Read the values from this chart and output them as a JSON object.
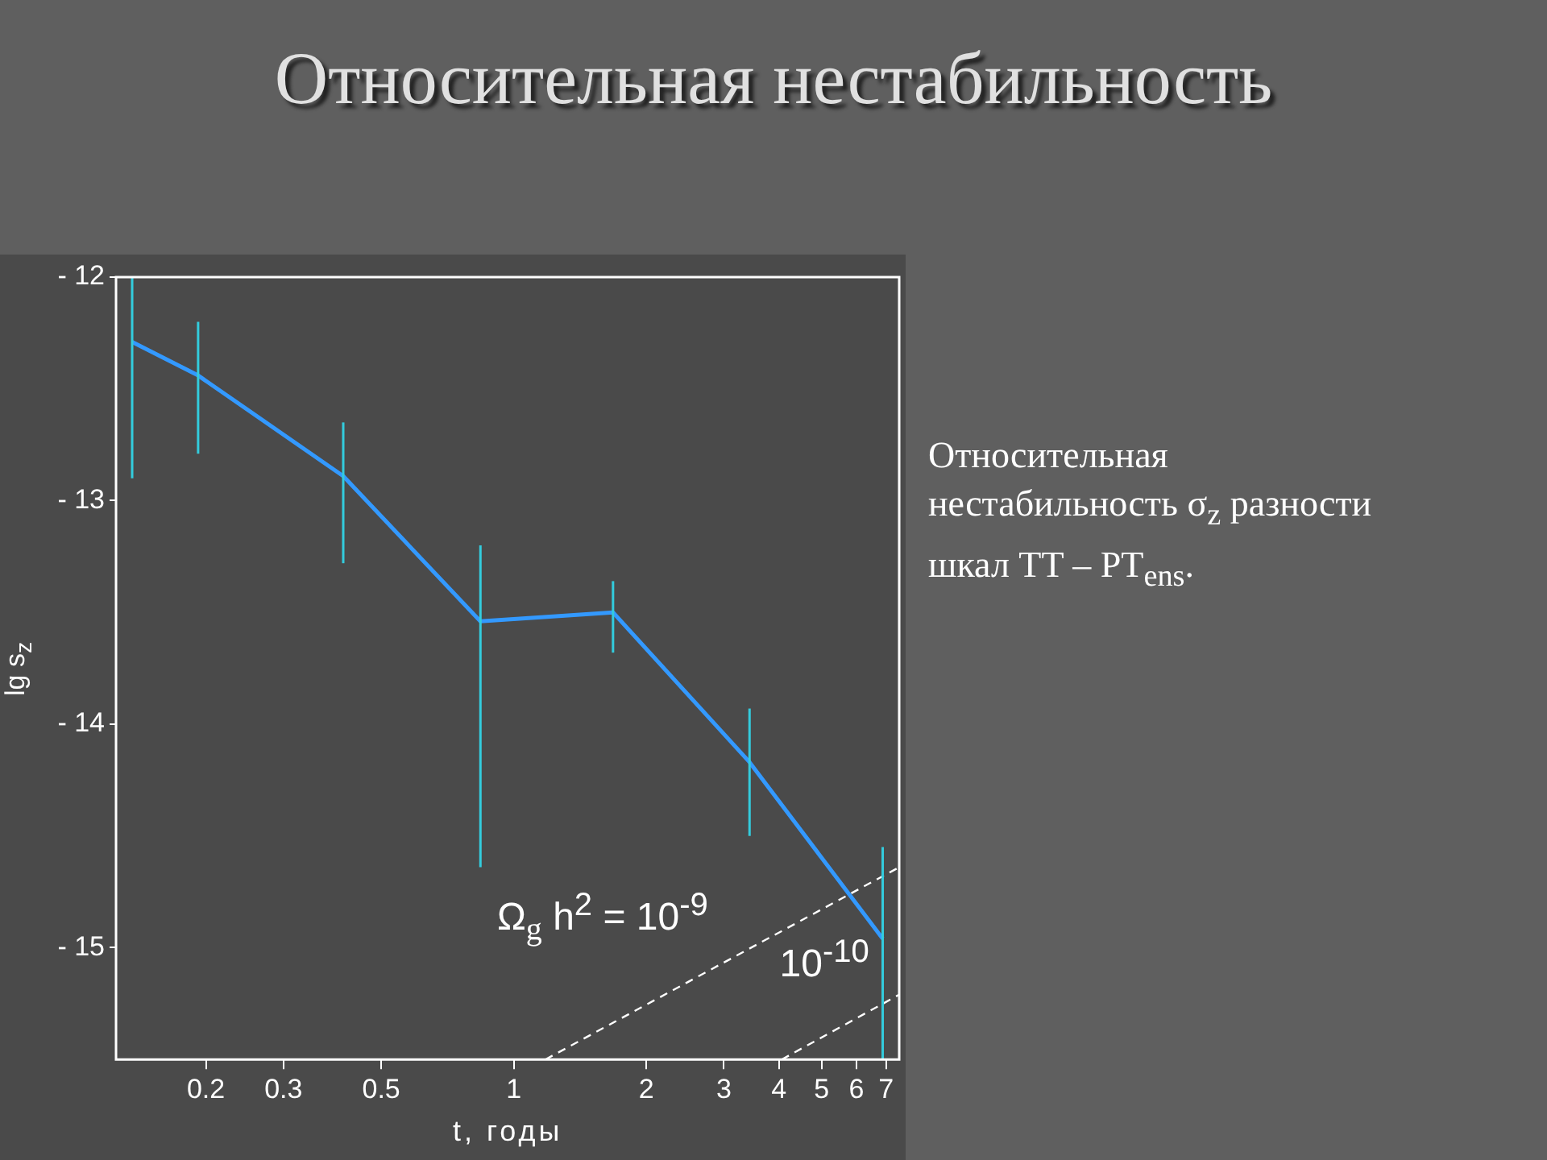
{
  "chart_data": {
    "type": "line",
    "title": "Относительная нестабильность",
    "xlabel": "t, годы",
    "ylabel": "lg s$_{z}$",
    "log": "x",
    "grid": false,
    "legend": false,
    "marker": "none",
    "xlim": [
      0.125,
      7.5
    ],
    "xticks": [
      0.2,
      0.3,
      0.5,
      1,
      2,
      3,
      4,
      5,
      6,
      7
    ],
    "ylim": [
      -15.5,
      -12
    ],
    "yticks": [
      {
        "value": -12,
        "label": "- 12"
      },
      {
        "value": -13,
        "label": "- 13"
      },
      {
        "value": -14,
        "label": "- 14"
      },
      {
        "value": -15,
        "label": "- 15"
      }
    ],
    "series": [
      {
        "color": "#3399ff",
        "line_style": "solid",
        "x": [
          0.136,
          0.192,
          0.41,
          0.84,
          1.68,
          3.43,
          6.88
        ],
        "values": [
          -12.29,
          -12.44,
          -12.89,
          -13.54,
          -13.5,
          -14.17,
          -14.96
        ],
        "errors": [
          [
            -12.9,
            -12.0
          ],
          [
            -12.79,
            -12.2
          ],
          [
            -13.28,
            -12.65
          ],
          [
            -14.64,
            -13.2
          ],
          [
            -13.68,
            -13.36
          ],
          [
            -14.5,
            -13.93
          ],
          [
            -15.5,
            -14.55
          ]
        ]
      },
      {
        "name": "Ω$_{g}$ h$^{2}$ = 10$^{-9}$",
        "color": "#ffffff",
        "line_style": "dashed",
        "x": [
          1.18,
          7.5
        ],
        "values": [
          -15.5,
          -14.64
        ]
      },
      {
        "name": "10$^{-10}$",
        "color": "#ffffff",
        "line_style": "dashed",
        "x": [
          4.06,
          7.5
        ],
        "values": [
          -15.5,
          -15.21
        ]
      }
    ],
    "annotations": [
      "Относительная нестабильность σ$_{z}$ разности шкал TT – PT$_{ens}$."
    ]
  }
}
